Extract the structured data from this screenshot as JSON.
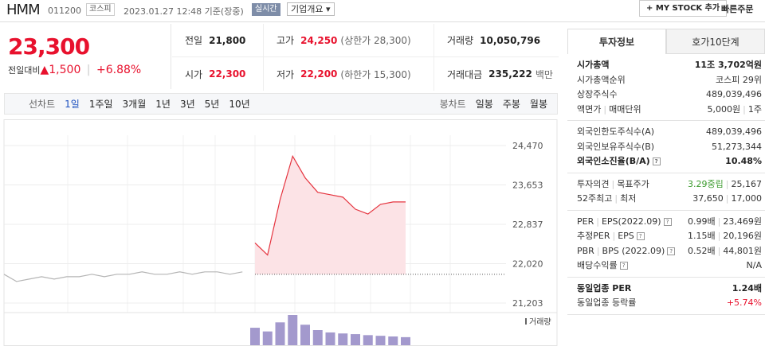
{
  "header": {
    "name": "HMM",
    "code": "011200",
    "market": "코스피",
    "time": "2023.01.27 12:48 기준(장중)",
    "realtime": "실시간",
    "overview": "기업개요",
    "my_stock": "MY STOCK 추가",
    "quick_order": "빠른주문"
  },
  "quote": {
    "price": "23,300",
    "change_label": "전일대비",
    "change": "1,500",
    "rate": "+6.88%"
  },
  "summary": [
    [
      "전일",
      "21,800"
    ],
    [
      "고가",
      "24,250",
      "(상한가 28,300)"
    ],
    [
      "거래량",
      "10,050,796"
    ],
    [
      "시가",
      "22,300"
    ],
    [
      "저가",
      "22,200",
      "(하한가 15,300)"
    ],
    [
      "거래대금",
      "235,222",
      "백만"
    ]
  ],
  "chart_tabs": {
    "line_label": "선차트",
    "line": [
      "1일",
      "1주일",
      "3개월",
      "1년",
      "3년",
      "5년",
      "10년"
    ],
    "candle_label": "봉차트",
    "candle": [
      "일봉",
      "주봉",
      "월봉"
    ]
  },
  "chart_data": {
    "type": "line",
    "categories": [
      null,
      null,
      null,
      null,
      null,
      null,
      null,
      null,
      null,
      null,
      null,
      null,
      null,
      null,
      null,
      null,
      null,
      null,
      null,
      null,
      null,
      null,
      null,
      null,
      null,
      null,
      null,
      null,
      null,
      null,
      null,
      null,
      null,
      null,
      null,
      null,
      null,
      null,
      null,
      null
    ],
    "series": [
      {
        "color": "#b5b5b5",
        "values": [
          21800,
          21650,
          21700,
          21750,
          21700,
          21750,
          21750,
          21800,
          21750,
          21800,
          21800,
          21850,
          21800,
          21800,
          21850,
          21800,
          21850,
          21850,
          21800,
          21850,
          null,
          null,
          null,
          null,
          null,
          null,
          null,
          null,
          null,
          null,
          null,
          null,
          null,
          null,
          null,
          null,
          null,
          null,
          null,
          null
        ]
      },
      {
        "color": "#e5343f",
        "fill": "#fce3e6",
        "values": [
          null,
          null,
          null,
          null,
          null,
          null,
          null,
          null,
          null,
          null,
          null,
          null,
          null,
          null,
          null,
          null,
          null,
          null,
          null,
          null,
          22450,
          22200,
          23350,
          24250,
          23800,
          23500,
          23450,
          23400,
          23150,
          23050,
          23250,
          23300,
          23300,
          null,
          null,
          null,
          null,
          null,
          null,
          null
        ]
      }
    ],
    "baseline": 21800,
    "ylim": [
      21203,
      24470
    ],
    "yticks": [
      {
        "value": 24470,
        "label": "24,470"
      },
      {
        "value": 23653,
        "label": "23,653"
      },
      {
        "value": 22837,
        "label": "22,837"
      },
      {
        "value": 22020,
        "label": "22,020"
      },
      {
        "value": 21203,
        "label": "21,203"
      }
    ],
    "grid": true,
    "volume": {
      "label": "거래량",
      "color": "#8c7fc0",
      "values": [
        null,
        null,
        null,
        null,
        null,
        null,
        null,
        null,
        null,
        null,
        null,
        null,
        null,
        null,
        null,
        null,
        null,
        null,
        null,
        null,
        520000,
        410000,
        680000,
        900000,
        610000,
        450000,
        380000,
        350000,
        330000,
        300000,
        280000,
        260000,
        240000,
        null,
        null,
        null,
        null,
        null,
        null,
        null
      ]
    }
  },
  "info": {
    "tabs": [
      "투자정보",
      "호가10단계"
    ],
    "sections": [
      [
        {
          "label": [
            "시가총액"
          ],
          "value": [
            "11조 3,702억원"
          ],
          "bold": true
        },
        {
          "label": [
            "시가총액순위"
          ],
          "value": [
            "코스피 29위"
          ]
        },
        {
          "label": [
            "상장주식수"
          ],
          "value": [
            "489,039,496"
          ]
        },
        {
          "label": [
            "액면가",
            "매매단위"
          ],
          "value": [
            "5,000원",
            "1주"
          ]
        }
      ],
      [
        {
          "label": [
            "외국인한도주식수(A)"
          ],
          "value": [
            "489,039,496"
          ]
        },
        {
          "label": [
            "외국인보유주식수(B)"
          ],
          "value": [
            "51,273,344"
          ]
        },
        {
          "label": [
            "외국인소진율(B/A)"
          ],
          "value": [
            "10.48%"
          ],
          "bold": true,
          "help": true
        }
      ],
      [
        {
          "label": [
            "투자의견",
            "목표주가"
          ],
          "value": [
            "3.29중립",
            "25,167"
          ],
          "value_colors": [
            "#3a9a2c",
            "#333333"
          ]
        },
        {
          "label": [
            "52주최고",
            "최저"
          ],
          "value": [
            "37,650",
            "17,000"
          ]
        }
      ],
      [
        {
          "label": [
            "PER",
            "EPS(2022.09)"
          ],
          "value": [
            "0.99배",
            "23,469원"
          ],
          "help": true
        },
        {
          "label": [
            "추정PER",
            "EPS"
          ],
          "value": [
            "1.15배",
            "20,196원"
          ],
          "help": true
        },
        {
          "label": [
            "PBR",
            "BPS (2022.09)"
          ],
          "value": [
            "0.52배",
            "44,801원"
          ],
          "help": true
        },
        {
          "label": [
            "배당수익률"
          ],
          "value": [
            "N/A"
          ],
          "help": true
        }
      ],
      [
        {
          "label": [
            "동일업종 PER"
          ],
          "value": [
            "1.24배"
          ],
          "bold": true
        },
        {
          "label": [
            "동일업종 등락률"
          ],
          "value": [
            "+5.74%"
          ],
          "value_colors": [
            "#e8112d"
          ]
        }
      ]
    ]
  }
}
